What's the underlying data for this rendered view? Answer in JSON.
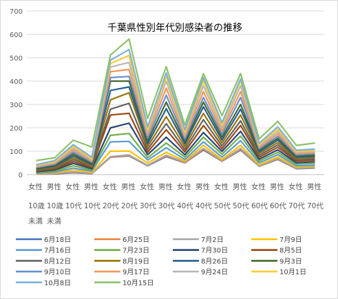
{
  "chart_data": {
    "type": "line",
    "title": "千葉県性別年代別感染者の推移",
    "ylim": [
      0,
      700
    ],
    "yticks": [
      "0",
      "100",
      "200",
      "300",
      "400",
      "500",
      "600",
      "700"
    ],
    "grid": true,
    "legend_position": "bottom",
    "categories": [
      [
        "女性",
        "10歳",
        "未満"
      ],
      [
        "男性",
        "10歳",
        "未満"
      ],
      [
        "女性",
        "10代"
      ],
      [
        "男性",
        "10代"
      ],
      [
        "女性",
        "20代"
      ],
      [
        "男性",
        "20代"
      ],
      [
        "女性",
        "30代"
      ],
      [
        "男性",
        "30代"
      ],
      [
        "女性",
        "40代"
      ],
      [
        "男性",
        "40代"
      ],
      [
        "女性",
        "50代"
      ],
      [
        "男性",
        "50代"
      ],
      [
        "女性",
        "60代"
      ],
      [
        "男性",
        "60代"
      ],
      [
        "女性",
        "70代"
      ],
      [
        "男性",
        "70代"
      ]
    ],
    "series": [
      {
        "name": "6月18日",
        "color": "#4472c4",
        "values": [
          2,
          3,
          8,
          4,
          74,
          80,
          38,
          77,
          50,
          105,
          57,
          105,
          36,
          65,
          25,
          28
        ]
      },
      {
        "name": "6月25日",
        "color": "#ed7d31",
        "values": [
          2,
          4,
          10,
          5,
          75,
          82,
          39,
          80,
          51,
          108,
          58,
          108,
          37,
          67,
          26,
          29
        ]
      },
      {
        "name": "7月2日",
        "color": "#a5a5a5",
        "values": [
          3,
          5,
          12,
          6,
          77,
          84,
          40,
          83,
          53,
          112,
          60,
          112,
          38,
          69,
          27,
          30
        ]
      },
      {
        "name": "7月9日",
        "color": "#ffc000",
        "values": [
          4,
          8,
          20,
          10,
          100,
          101,
          50,
          95,
          58,
          125,
          65,
          125,
          42,
          75,
          33,
          36
        ]
      },
      {
        "name": "7月16日",
        "color": "#5b9bd5",
        "values": [
          6,
          11,
          28,
          15,
          140,
          142,
          62,
          115,
          65,
          140,
          75,
          145,
          50,
          85,
          38,
          40
        ]
      },
      {
        "name": "7月23日",
        "color": "#70ad47",
        "values": [
          9,
          15,
          38,
          20,
          168,
          176,
          72,
          135,
          75,
          160,
          87,
          165,
          58,
          95,
          45,
          48
        ]
      },
      {
        "name": "7月30日",
        "color": "#264478",
        "values": [
          12,
          20,
          48,
          25,
          200,
          220,
          85,
          160,
          85,
          180,
          99,
          185,
          66,
          106,
          51,
          55
        ]
      },
      {
        "name": "8月5日",
        "color": "#9e480e",
        "values": [
          15,
          24,
          56,
          30,
          255,
          262,
          96,
          192,
          97,
          210,
          110,
          210,
          74,
          117,
          58,
          62
        ]
      },
      {
        "name": "8月12日",
        "color": "#636363",
        "values": [
          18,
          28,
          64,
          34,
          280,
          305,
          108,
          218,
          108,
          235,
          122,
          230,
          82,
          127,
          63,
          68
        ]
      },
      {
        "name": "8月19日",
        "color": "#997300",
        "values": [
          21,
          32,
          72,
          38,
          320,
          350,
          120,
          248,
          120,
          262,
          135,
          255,
          90,
          137,
          69,
          74
        ]
      },
      {
        "name": "8月26日",
        "color": "#255e91",
        "values": [
          24,
          36,
          80,
          43,
          360,
          375,
          132,
          282,
          132,
          290,
          148,
          280,
          97,
          147,
          74,
          79
        ]
      },
      {
        "name": "9月3日",
        "color": "#43682b",
        "values": [
          27,
          40,
          88,
          48,
          400,
          400,
          144,
          310,
          142,
          310,
          160,
          300,
          104,
          155,
          79,
          84
        ]
      },
      {
        "name": "9月10日",
        "color": "#698ed0",
        "values": [
          30,
          44,
          96,
          53,
          415,
          420,
          156,
          340,
          152,
          330,
          172,
          330,
          110,
          164,
          84,
          89
        ]
      },
      {
        "name": "9月17日",
        "color": "#f1975a",
        "values": [
          33,
          48,
          104,
          58,
          440,
          450,
          168,
          370,
          162,
          355,
          185,
          355,
          116,
          174,
          89,
          94
        ]
      },
      {
        "name": "9月24日",
        "color": "#b7b7b7",
        "values": [
          36,
          52,
          112,
          63,
          460,
          480,
          180,
          400,
          172,
          380,
          198,
          380,
          122,
          184,
          94,
          99
        ]
      },
      {
        "name": "10月1日",
        "color": "#ffcd33",
        "values": [
          39,
          56,
          120,
          68,
          475,
          510,
          192,
          420,
          182,
          400,
          210,
          400,
          128,
          194,
          99,
          104
        ]
      },
      {
        "name": "10月8日",
        "color": "#7cafdd",
        "values": [
          42,
          60,
          128,
          74,
          490,
          535,
          204,
          435,
          192,
          415,
          222,
          410,
          134,
          204,
          104,
          109
        ]
      },
      {
        "name": "10月15日",
        "color": "#8cc168",
        "values": [
          60,
          72,
          147,
          118,
          512,
          580,
          240,
          462,
          212,
          432,
          252,
          432,
          153,
          228,
          125,
          135
        ]
      }
    ]
  }
}
